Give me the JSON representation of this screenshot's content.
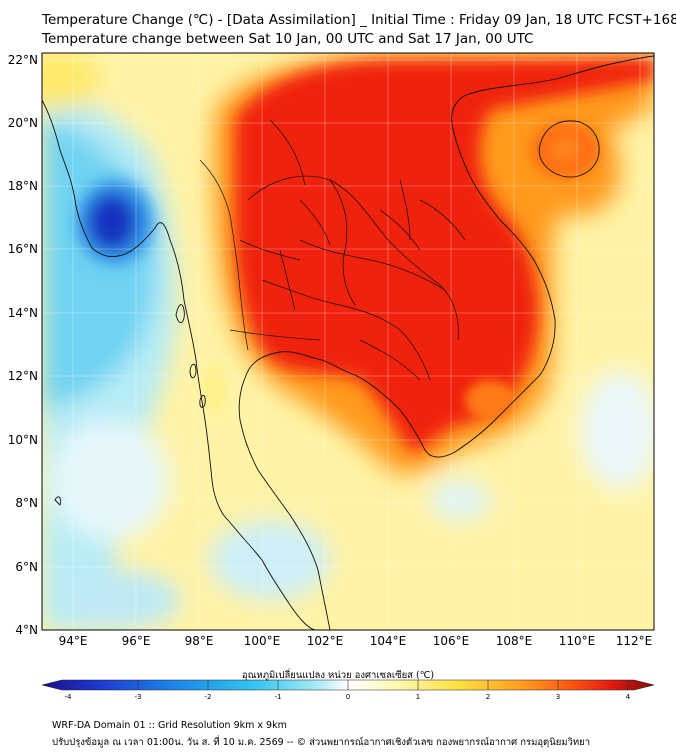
{
  "title": {
    "line1": "Temperature Change (℃) - [Data Assimilation] _ Initial Time : Friday 09 Jan, 18 UTC FCST+168",
    "line2": "Temperature change between Sat 10 Jan, 00 UTC and Sat 17 Jan, 00 UTC"
  },
  "map": {
    "lat_labels": [
      "22°N",
      "20°N",
      "18°N",
      "16°N",
      "14°N",
      "12°N",
      "10°N",
      "8°N",
      "6°N",
      "4°N"
    ],
    "lon_labels": [
      "94°E",
      "96°E",
      "98°E",
      "100°E",
      "102°E",
      "104°E",
      "106°E",
      "108°E",
      "110°E",
      "112°E"
    ],
    "lat_range": [
      4,
      22
    ],
    "lon_range": [
      93,
      112.5
    ],
    "fields": [
      {
        "name": "cold-core-andaman-sea",
        "lon": 95.3,
        "lat": 16.7,
        "value": -4
      },
      {
        "name": "warm-core-indochina",
        "lon": 103.5,
        "lat": 15.5,
        "value": 3
      },
      {
        "name": "warm-hainan",
        "lon": 109.5,
        "lat": 19.2,
        "value": 3
      }
    ]
  },
  "colorbar": {
    "label": "อุณหภูมิเปลี่ยนแปลง หน่วย องศาเซลเซียส (℃)",
    "ticks": [
      "-4",
      "-3",
      "-2",
      "-1",
      "0",
      "1",
      "2",
      "3",
      "4"
    ],
    "range": [
      -4,
      4
    ],
    "colors": [
      "#1a0f8c",
      "#1e3cd2",
      "#1c88e8",
      "#35c6f0",
      "#a8ecf5",
      "#ffffff",
      "#fff8b0",
      "#ffe040",
      "#ffa020",
      "#ff5a10",
      "#e41a10",
      "#7a0a0a"
    ]
  },
  "footer": {
    "line1": "WRF-DA Domain 01 :: Grid Resolution 9km x 9km",
    "line2": "ปรับปรุงข้อมูล ณ เวลา 01:00น. วัน ส. ที่ 10 ม.ค. 2569 -- © ส่วนพยากรณ์อากาศเชิงตัวเลข กองพยากรณ์อากาศ กรมอุตุนิยมวิทยา"
  }
}
